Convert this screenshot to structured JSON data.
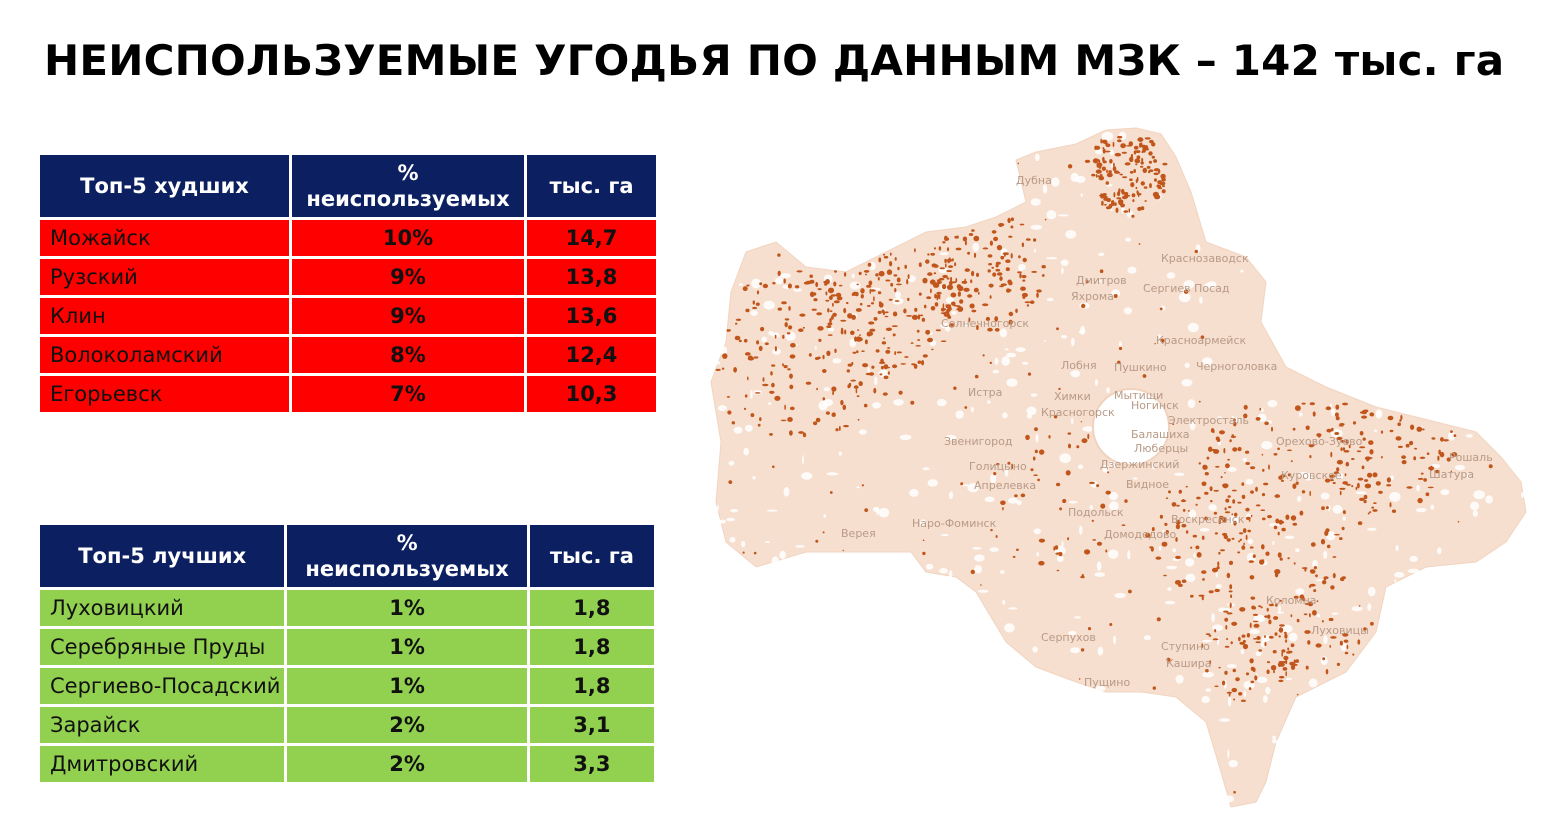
{
  "title": "НЕИСПОЛЬЗУЕМЫЕ УГОДЬЯ ПО ДАННЫМ МЗК – 142 тыс. га",
  "worst_table": {
    "headers": [
      "Топ-5 худших",
      "% неиспользуемых",
      "тыс. га"
    ],
    "rows": [
      {
        "name": "Можайск",
        "percent": "10%",
        "area": "14,7"
      },
      {
        "name": "Рузский",
        "percent": "9%",
        "area": "13,8"
      },
      {
        "name": "Клин",
        "percent": "9%",
        "area": "13,6"
      },
      {
        "name": "Волоколамский",
        "percent": "8%",
        "area": "12,4"
      },
      {
        "name": "Егорьевск",
        "percent": "7%",
        "area": "10,3"
      }
    ]
  },
  "best_table": {
    "headers": [
      "Топ-5 лучших",
      "% неиспользуемых",
      "тыс. га"
    ],
    "rows": [
      {
        "name": "Луховицкий",
        "percent": "1%",
        "area": "1,8"
      },
      {
        "name": "Серебряные Пруды",
        "percent": "1%",
        "area": "1,8"
      },
      {
        "name": "Сергиево-Посадский",
        "percent": "1%",
        "area": "1,8"
      },
      {
        "name": "Зарайск",
        "percent": "2%",
        "area": "3,1"
      },
      {
        "name": "Дмитровский",
        "percent": "2%",
        "area": "3,3"
      }
    ]
  },
  "map": {
    "cities": [
      "Дубна",
      "Краснозаводск",
      "Дмитров",
      "Яхрома",
      "Сергиев Посад",
      "Солнечногорск",
      "Красноармейск",
      "Лобня",
      "Пушкино",
      "Черноголовка",
      "Истра",
      "Химки",
      "Мытищи",
      "Красногорск",
      "Ногинск",
      "Электросталь",
      "Балашиха",
      "Люберцы",
      "Звенигород",
      "Орехово-Зуево",
      "Дзержинский",
      "Рошаль",
      "Голицыно",
      "Шатура",
      "Апрелевка",
      "Видное",
      "Куровское",
      "Подольск",
      "Наро-Фоминск",
      "Домодедово",
      "Верея",
      "Воскресенск",
      "Коломна",
      "Серпухов",
      "Луховицы",
      "Ступино",
      "Кашира",
      "Пущино"
    ],
    "colors": {
      "land": "#f6dfcf",
      "urban": "#ffffff",
      "unused": "#c0561c",
      "label": "#b89a86"
    }
  }
}
